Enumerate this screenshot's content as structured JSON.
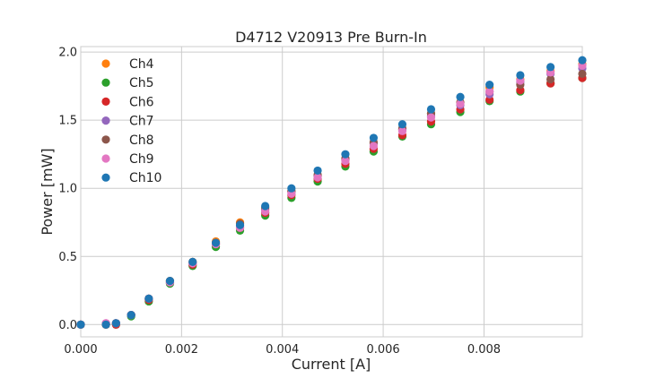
{
  "chart_data": {
    "type": "scatter",
    "title": "D4712 V20913 Pre Burn-In",
    "xlabel": "Current [A]",
    "ylabel": "Power [mW]",
    "xlim": [
      0.0,
      0.00995
    ],
    "ylim": [
      -0.09,
      2.04
    ],
    "xticks": [
      0.0,
      0.002,
      0.004,
      0.006,
      0.008
    ],
    "xtick_labels": [
      "0.000",
      "0.002",
      "0.004",
      "0.006",
      "0.008"
    ],
    "yticks": [
      0.0,
      0.5,
      1.0,
      1.5,
      2.0
    ],
    "ytick_labels": [
      "0.0",
      "0.5",
      "1.0",
      "1.5",
      "2.0"
    ],
    "grid": true,
    "legend_position": "top-left",
    "x": [
      0.0,
      0.0005,
      0.0007,
      0.001,
      0.00135,
      0.00177,
      0.00222,
      0.00268,
      0.00316,
      0.00366,
      0.00418,
      0.0047,
      0.00525,
      0.00581,
      0.00638,
      0.00695,
      0.00753,
      0.00811,
      0.00872,
      0.00932,
      0.00995
    ],
    "series": [
      {
        "name": "Ch4",
        "color": "#ff7f0e",
        "values": [
          0.0,
          0.0,
          0.01,
          0.07,
          0.19,
          0.32,
          0.46,
          0.61,
          0.75,
          0.85,
          0.98,
          1.09,
          1.21,
          1.33,
          1.43,
          1.55,
          1.63,
          1.74,
          1.8,
          1.86,
          1.91
        ]
      },
      {
        "name": "Ch5",
        "color": "#2ca02c",
        "values": [
          0.0,
          0.0,
          0.0,
          0.06,
          0.17,
          0.3,
          0.43,
          0.57,
          0.69,
          0.8,
          0.93,
          1.05,
          1.16,
          1.27,
          1.38,
          1.47,
          1.56,
          1.64,
          1.71,
          1.77,
          1.81
        ]
      },
      {
        "name": "Ch6",
        "color": "#d62728",
        "values": [
          0.0,
          0.0,
          0.0,
          0.07,
          0.18,
          0.31,
          0.44,
          0.59,
          0.71,
          0.82,
          0.95,
          1.07,
          1.18,
          1.29,
          1.39,
          1.49,
          1.58,
          1.65,
          1.72,
          1.77,
          1.81
        ]
      },
      {
        "name": "Ch7",
        "color": "#9467bd",
        "values": [
          0.0,
          0.01,
          0.01,
          0.07,
          0.19,
          0.31,
          0.45,
          0.6,
          0.72,
          0.84,
          0.97,
          1.09,
          1.21,
          1.33,
          1.43,
          1.53,
          1.61,
          1.69,
          1.78,
          1.84,
          1.88
        ]
      },
      {
        "name": "Ch8",
        "color": "#8c564b",
        "values": [
          0.0,
          0.0,
          0.01,
          0.07,
          0.19,
          0.32,
          0.46,
          0.6,
          0.74,
          0.86,
          0.98,
          1.1,
          1.22,
          1.34,
          1.44,
          1.55,
          1.63,
          1.71,
          1.76,
          1.8,
          1.84
        ]
      },
      {
        "name": "Ch9",
        "color": "#e377c2",
        "values": [
          0.0,
          0.01,
          0.01,
          0.07,
          0.19,
          0.31,
          0.45,
          0.59,
          0.71,
          0.83,
          0.96,
          1.08,
          1.2,
          1.31,
          1.42,
          1.52,
          1.62,
          1.71,
          1.79,
          1.85,
          1.9
        ]
      },
      {
        "name": "Ch10",
        "color": "#1f77b4",
        "values": [
          0.0,
          0.0,
          0.01,
          0.07,
          0.19,
          0.32,
          0.46,
          0.6,
          0.73,
          0.87,
          1.0,
          1.13,
          1.25,
          1.37,
          1.47,
          1.58,
          1.67,
          1.76,
          1.83,
          1.89,
          1.94
        ]
      }
    ]
  }
}
